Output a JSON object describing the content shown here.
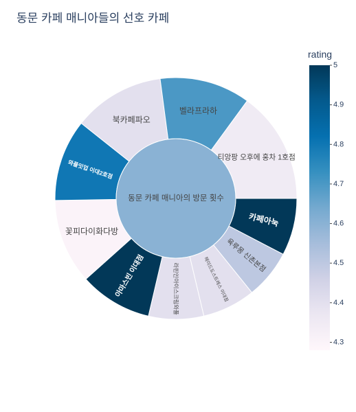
{
  "title": "동문 카페 매니아들의 선호 카페",
  "chart_data": {
    "type": "sunburst",
    "title": "동문 카페 매니아들의 선호 카페",
    "center": {
      "label": "동문 카페 매니아의 방문 횟수"
    },
    "slices": [
      {
        "label": "카페아눅",
        "rating": 5.0,
        "share": 0.0765
      },
      {
        "label": "육루몽 신촌본점",
        "rating": 4.5,
        "share": 0.0655
      },
      {
        "label": "헤이드도스트레스 이대점",
        "rating": 4.4,
        "share": 0.0709
      },
      {
        "label": "라핀인아이스크림와플",
        "rating": 4.4,
        "share": 0.0737
      },
      {
        "label": "아마스빈 이대점",
        "rating": 5.0,
        "share": 0.0971
      },
      {
        "label": "꽃피다이화다방",
        "rating": 4.3,
        "share": 0.1137
      },
      {
        "label": "와플잇업 이대2호점",
        "rating": 4.8,
        "share": 0.1095
      },
      {
        "label": "북카페파오",
        "rating": 4.4,
        "share": 0.1222
      },
      {
        "label": "벨라프라하",
        "rating": 4.7,
        "share": 0.1212
      },
      {
        "label": "티앙팡 오후에 홍차 1호점",
        "rating": 4.35,
        "share": 0.1497
      }
    ],
    "colorscale": [
      "#fff7fb",
      "#ece7f2",
      "#d0d1e6",
      "#a6bddb",
      "#74a9cf",
      "#3690c0",
      "#0570b0",
      "#045a8d",
      "#023858"
    ],
    "colorbar": {
      "title": "rating",
      "range": [
        4.28,
        5.0
      ],
      "ticks": [
        "4.3",
        "4.4",
        "4.5",
        "4.6",
        "4.7",
        "4.8",
        "4.9",
        "5"
      ]
    }
  }
}
